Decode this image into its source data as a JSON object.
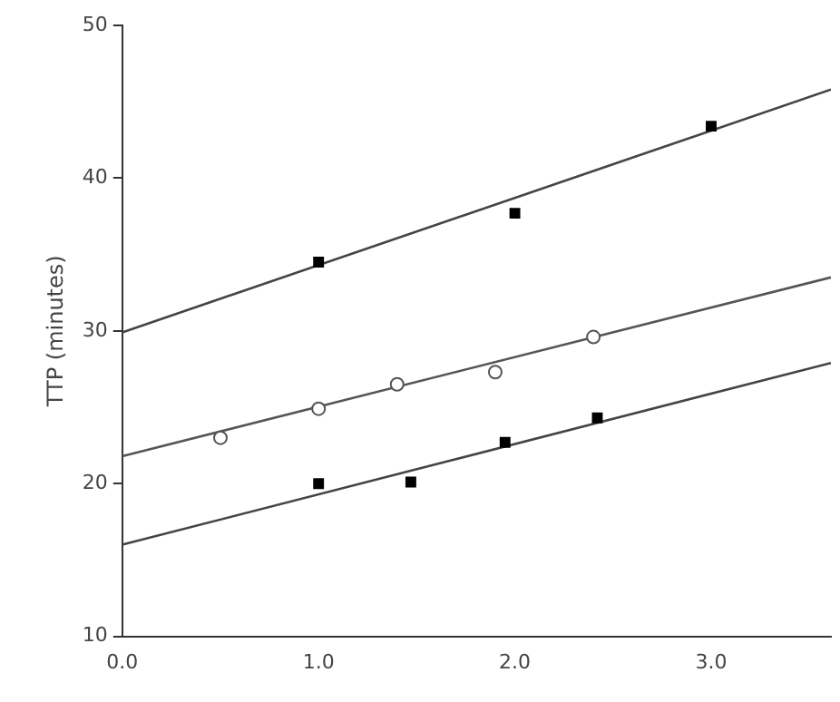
{
  "chart_data": {
    "type": "scatter",
    "ylabel": "TTP (minutes)",
    "xlim": [
      0,
      3.61
    ],
    "xticks": [
      {
        "value": 0,
        "label": "0.0"
      },
      {
        "value": 1,
        "label": "1.0"
      },
      {
        "value": 2,
        "label": "2.0"
      },
      {
        "value": 3,
        "label": "3.0"
      }
    ],
    "ylim": [
      10,
      50
    ],
    "yticks": [
      10,
      20,
      30,
      40,
      50
    ],
    "grid": false,
    "legend": false,
    "series": [
      {
        "marker": "square",
        "color": "#000000",
        "x": [
          1.0,
          2.0,
          3.0
        ],
        "values": [
          34.5,
          37.7,
          43.4
        ]
      },
      {
        "marker": "circle",
        "color": "#555555",
        "x": [
          0.5,
          1.0,
          1.4,
          1.9,
          2.4
        ],
        "values": [
          23.0,
          24.9,
          26.5,
          27.3,
          29.6
        ]
      },
      {
        "marker": "square",
        "color": "#000000",
        "x": [
          1.0,
          1.47,
          1.95,
          2.42
        ],
        "values": [
          20.0,
          20.1,
          22.7,
          24.3
        ]
      },
      {
        "type": "line",
        "color": "#444444",
        "x": [
          0,
          3.61
        ],
        "values": [
          29.9,
          45.8
        ]
      },
      {
        "type": "line",
        "color": "#555555",
        "x": [
          0,
          3.61
        ],
        "values": [
          21.8,
          33.5
        ]
      },
      {
        "type": "line",
        "color": "#444444",
        "x": [
          0,
          3.61
        ],
        "values": [
          16.0,
          27.9
        ]
      }
    ]
  }
}
